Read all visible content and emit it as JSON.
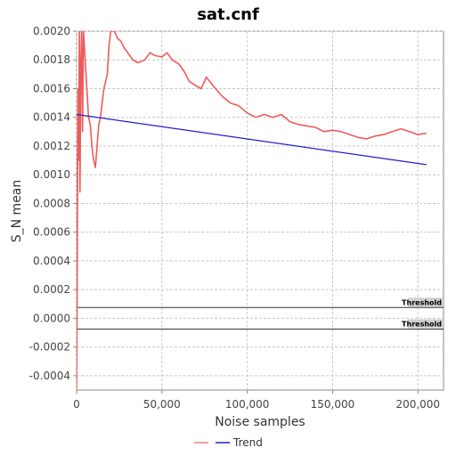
{
  "chart_data": {
    "type": "line",
    "title": "sat.cnf",
    "xlabel": "Noise samples",
    "ylabel": "S_N mean",
    "xlim": [
      0,
      215000
    ],
    "ylim": [
      -0.0005,
      0.002
    ],
    "grid": true,
    "x_ticks": [
      0,
      50000,
      100000,
      150000,
      200000
    ],
    "x_tick_labels": [
      "0",
      "50,000",
      "100,000",
      "150,000",
      "200,000"
    ],
    "y_ticks": [
      -0.0004,
      -0.0002,
      0.0,
      0.0002,
      0.0004,
      0.0006,
      0.0008,
      0.001,
      0.0012,
      0.0014,
      0.0016,
      0.0018,
      0.002
    ],
    "y_tick_labels": [
      "-0.0004",
      "-0.0002",
      "0.0000",
      "0.0002",
      "0.0004",
      "0.0006",
      "0.0008",
      "0.0010",
      "0.0012",
      "0.0014",
      "0.0016",
      "0.0018",
      "0.0020"
    ],
    "series": [
      {
        "name": "",
        "color": "#f05a5a",
        "x": [
          0,
          300,
          600,
          900,
          1200,
          1600,
          2000,
          2500,
          3000,
          3500,
          4000,
          5000,
          6000,
          7000,
          8000,
          9000,
          10000,
          11000,
          12000,
          13000,
          14000,
          15000,
          16000,
          17000,
          18000,
          19000,
          20000,
          21000,
          22000,
          24000,
          26000,
          28000,
          30000,
          33000,
          36000,
          40000,
          43000,
          46000,
          50000,
          53000,
          56000,
          60000,
          63000,
          66000,
          70000,
          73000,
          76000,
          80000,
          85000,
          90000,
          95000,
          100000,
          105000,
          110000,
          115000,
          120000,
          125000,
          130000,
          135000,
          140000,
          145000,
          150000,
          155000,
          160000,
          165000,
          170000,
          175000,
          180000,
          185000,
          190000,
          195000,
          200000,
          205000
        ],
        "y": [
          -0.0005,
          0.0002,
          0.0009,
          0.0016,
          0.0011,
          0.002,
          0.00088,
          0.0018,
          0.002,
          0.0013,
          0.002,
          0.0018,
          0.0016,
          0.0014,
          0.00135,
          0.0012,
          0.0011,
          0.00105,
          0.0012,
          0.00135,
          0.0014,
          0.0015,
          0.0016,
          0.00165,
          0.0017,
          0.0019,
          0.002,
          0.002,
          0.002,
          0.00195,
          0.00193,
          0.00188,
          0.00185,
          0.0018,
          0.00178,
          0.0018,
          0.00185,
          0.00183,
          0.00182,
          0.00185,
          0.0018,
          0.00177,
          0.00172,
          0.00165,
          0.00162,
          0.0016,
          0.00168,
          0.00162,
          0.00155,
          0.0015,
          0.00148,
          0.00143,
          0.0014,
          0.00142,
          0.0014,
          0.00142,
          0.00137,
          0.00135,
          0.00134,
          0.00133,
          0.0013,
          0.00131,
          0.0013,
          0.00128,
          0.00126,
          0.00125,
          0.00127,
          0.00128,
          0.0013,
          0.00132,
          0.0013,
          0.00128,
          0.00129
        ]
      },
      {
        "name": "Trend",
        "color": "#2020c8",
        "x": [
          0,
          205000
        ],
        "y": [
          0.00142,
          0.00107
        ]
      }
    ],
    "thresholds": [
      {
        "label": "Threshold",
        "value": 7.5e-05
      },
      {
        "label": "Threshold",
        "value": -7.5e-05
      }
    ],
    "legend": {
      "position": "bottom",
      "entries": [
        {
          "label": "",
          "color": "#f08080"
        },
        {
          "label": "Trend",
          "color": "#2020c8"
        }
      ]
    }
  }
}
